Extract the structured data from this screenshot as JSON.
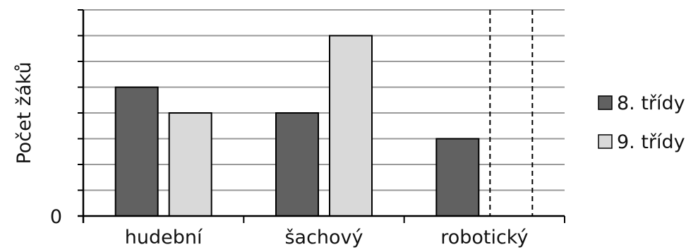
{
  "chart_data": {
    "type": "bar",
    "title": "",
    "xlabel": "",
    "ylabel": "Počet žáků",
    "categories": [
      "hudební",
      "šachový",
      "robotický"
    ],
    "series": [
      {
        "name": "8. třídy",
        "color": "#616161",
        "values": [
          5,
          4,
          3
        ]
      },
      {
        "name": "9. třídy",
        "color": "#d9d9d9",
        "values": [
          4,
          7,
          null
        ]
      }
    ],
    "missing_value_style": "dashed",
    "ylim": [
      0,
      8
    ],
    "y_tick_labels": [
      {
        "value": 0,
        "label": "0"
      }
    ],
    "grid": true,
    "legend": "right"
  }
}
